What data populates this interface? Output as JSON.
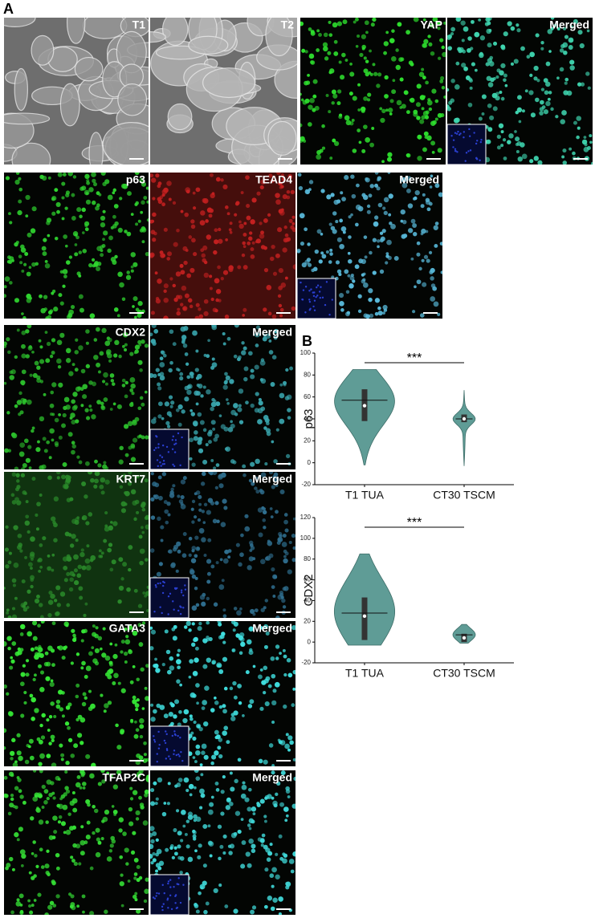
{
  "figure": {
    "panel_a_label": "A",
    "panel_b_label": "B",
    "images": [
      {
        "label": "T1",
        "color": "#9a9a9a"
      },
      {
        "label": "T2",
        "color": "#b5b5b5"
      },
      {
        "label": "YAP",
        "color": "#2ee02e"
      },
      {
        "label": "Merged",
        "color": "#3fd6b0"
      },
      {
        "label": "p63",
        "color": "#2fd42f"
      },
      {
        "label": "TEAD4",
        "color": "#c42020"
      },
      {
        "label": "Merged",
        "color": "#58b8d8"
      },
      {
        "label": "CDX2",
        "color": "#2cbf2c"
      },
      {
        "label": "Merged",
        "color": "#3aa8b0"
      },
      {
        "label": "KRT7",
        "color": "#2a8a2a"
      },
      {
        "label": "Merged",
        "color": "#2f6f8f"
      },
      {
        "label": "GATA3",
        "color": "#35e835"
      },
      {
        "label": "Merged",
        "color": "#40e0e0"
      },
      {
        "label": "TFAP2C",
        "color": "#35e035"
      },
      {
        "label": "Merged",
        "color": "#40d8d8"
      }
    ]
  },
  "chart_data": [
    {
      "type": "violin",
      "y_label": "p63",
      "categories": [
        "T1 TUA",
        "CT30 TSCM"
      ],
      "color": "#5f9c96",
      "stats": [
        {
          "min": -2,
          "q1": 38,
          "median": 57,
          "mean": 52,
          "q3": 67,
          "max": 85
        },
        {
          "min": -3,
          "q1": 37,
          "median": 40,
          "mean": 40,
          "q3": 44,
          "max": 66
        }
      ],
      "significance": "***",
      "ylim": [
        -20,
        100
      ],
      "yticks": [
        -20,
        0,
        20,
        40,
        60,
        80,
        100
      ]
    },
    {
      "type": "violin",
      "y_label": "CDX2",
      "categories": [
        "T1 TUA",
        "CT30 TSCM"
      ],
      "color": "#5f9c96",
      "stats": [
        {
          "min": -3,
          "q1": 2,
          "median": 28,
          "mean": 25,
          "q3": 43,
          "max": 85
        },
        {
          "min": -1,
          "q1": 0,
          "median": 7,
          "mean": 4,
          "q3": 8,
          "max": 17
        }
      ],
      "significance": "***",
      "ylim": [
        -20,
        120
      ],
      "yticks": [
        -20,
        0,
        20,
        40,
        60,
        80,
        100,
        120
      ]
    }
  ]
}
